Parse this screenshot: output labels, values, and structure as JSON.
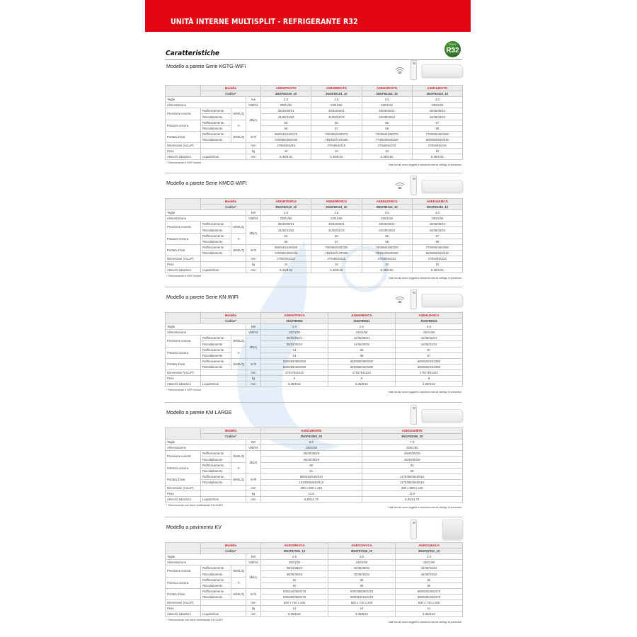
{
  "header": {
    "title": "UNITÀ INTERNE MULTISPLIT - REFRIGERANTE R32"
  },
  "intro": {
    "heading": "Caratteristiche",
    "badge_label": "R32",
    "badge_small": "refrigerant"
  },
  "labels": {
    "modello": "Modello",
    "codice": "Codice*",
    "taglie": "Taglie",
    "alimentazione": "Alimentazione",
    "pressione": "Pressione sonora",
    "potenza": "Potenza sonora",
    "portata": "Portata d'aria",
    "dimensioni": "Dimensioni (AxLxP)",
    "peso": "Peso",
    "attacchi": "Attacchi tubazioni",
    "raffrescamento": "Raffrescamento",
    "riscaldamento": "Riscaldamento",
    "hmlq": "H/M/L/Q",
    "h": "H",
    "liquido_gas": "Liquido/Gas",
    "unit_alim": "V/Ø/Hz",
    "unit_db": "dB(A)",
    "unit_portata": "m³/h",
    "unit_mm": "mm",
    "unit_kg": "kg",
    "wifi": "WIFI",
    "disclaimer": "I dati tecnici sono soggetti a variazioni senza obbligo di preavviso."
  },
  "accent_color": "#e30613",
  "sections": [
    {
      "title": "Modello a parete Serie KGTG-WIFI",
      "icons": [
        "wifi-icon",
        "remote-control-icon",
        "wall-unit-icon"
      ],
      "unit_kw": "Kw",
      "models": [
        "ASEH07KGTG",
        "ASEH09KGTG",
        "ASEH12KGTG",
        "ASEH14KGTG"
      ],
      "codes": [
        "3NGF82100_10",
        "3NGF82101_10",
        "3NGF82102_10",
        "3NGF82103_10"
      ],
      "taglie": [
        "2.0",
        "2.5",
        "3.5",
        "4.0"
      ],
      "alimentazione": [
        "230/1/50",
        "230/1/50",
        "230/1/50",
        "230/1/50"
      ],
      "pressione_raff": [
        "38/33/29/21",
        "40/34/29/21",
        "40/35/30/21",
        "43/36/30/21"
      ],
      "pressione_risc": [
        "41/35/31/22",
        "42/36/31/22",
        "42/38/33/22",
        "44/39/33/24"
      ],
      "potenza_raff": [
        "54",
        "55",
        "56",
        "57"
      ],
      "potenza_risc": [
        "56",
        "57",
        "58",
        "59"
      ],
      "portata_raff": [
        "650/540/430/270",
        "700/560/430/270",
        "700/560/430/270",
        "770/600/450/280"
      ],
      "portata_risc": [
        "720/580/460/330",
        "750/610/470/330",
        "770/640/520/330",
        "800/660/520/340"
      ],
      "dimensioni": [
        "270x834x215",
        "270x834x215",
        "270x834x215",
        "270x834x215"
      ],
      "peso": [
        "10",
        "10",
        "10",
        "10"
      ],
      "attacchi": [
        "6.35/9.52",
        "6.35/9.52",
        "6.35/9.52",
        "6.35/9.52"
      ],
      "footnote": "* Telecomando e WIFI inclusi"
    },
    {
      "title": "Modello a parete Serie KMCG-WIFI",
      "icons": [
        "wifi-icon",
        "remote-control-icon",
        "wall-unit-icon"
      ],
      "unit_kw": "kW",
      "models": [
        "ASEH07KMCG",
        "ASEH09KMCG",
        "ASEH12KMCG",
        "ASEH14KMCG"
      ],
      "codes": [
        "3NGF82112_10",
        "3NGF82113_10",
        "3NGF82114_10",
        "3NGF82115_10"
      ],
      "taglie": [
        "2.0",
        "2.5",
        "3.5",
        "4.0"
      ],
      "alimentazione": [
        "230/1/50",
        "230/1/50",
        "230/1/50",
        "230/1/50"
      ],
      "pressione_raff": [
        "38/33/29/21",
        "40/34/29/21",
        "40/35/30/21",
        "43/36/30/21"
      ],
      "pressione_risc": [
        "41/35/31/22",
        "42/36/31/22",
        "42/38/33/22",
        "44/39/33/24"
      ],
      "potenza_raff": [
        "54",
        "55",
        "55",
        "57"
      ],
      "potenza_risc": [
        "56",
        "57",
        "58",
        "59"
      ],
      "portata_raff": [
        "650/540/430/320",
        "700/560/430/320",
        "700/560/430/320",
        "770/600/450/350"
      ],
      "portata_risc": [
        "720/580/460/330",
        "750/610/470/330",
        "780/640/520/330",
        "820/660/520/340"
      ],
      "dimensioni": [
        "270x834x222",
        "270x834x222",
        "270x834x222",
        "270x834x222"
      ],
      "peso": [
        "10",
        "10",
        "10",
        "10"
      ],
      "attacchi": [
        "6.35/9.52",
        "6.35/9.52",
        "6.35/9.52",
        "6.35/9.52"
      ],
      "footnote": "* Telecomando e WIFI inclusi"
    },
    {
      "title": "Modello a parete Serie KN-WIFI",
      "icons": [
        "wifi-icon",
        "remote-control-icon",
        "wall-unit-icon"
      ],
      "unit_kw": "kW",
      "models": [
        "ASEH07KNCA",
        "ASEH09KNCA",
        "ASEH12KNCA"
      ],
      "codes": [
        "3NGF89906",
        "3NGF89911",
        "3NGF89916"
      ],
      "taglie": [
        "2.0",
        "2.5",
        "3.5"
      ],
      "alimentazione": [
        "230/1/50",
        "230/1/50",
        "230/1/50"
      ],
      "pressione_raff": [
        "36/33/28/21",
        "41/35/28/21",
        "42/36/32/21"
      ],
      "pressione_risc": [
        "36/33/30/22",
        "41/36/30/22",
        "42/35/31/22"
      ],
      "potenza_raff": [
        "51",
        "56",
        "57"
      ],
      "potenza_risc": [
        "51",
        "56",
        "57"
      ],
      "portata_raff": [
        "530/460/380/250",
        "640/560/380/250",
        "660/520/440/250"
      ],
      "portata_risc": [
        "530/480/420/280",
        "640/560/420/280",
        "660/520/440/280"
      ],
      "dimensioni": [
        "270x784x222",
        "270x784x222",
        "270x784x222"
      ],
      "peso": [
        "9",
        "9",
        "9"
      ],
      "attacchi": [
        "6.35/9.52",
        "6.35/9.52",
        "6.35/9.52"
      ],
      "footnote": "* Telecomando e WIFI inclusi"
    },
    {
      "title": "Modello a parete KM LARGE",
      "icons": [
        "remote-control-icon",
        "wall-unit-icon"
      ],
      "unit_kw": "kW",
      "models": [
        "ASEG18KMTE",
        "ASEG24KMTE"
      ],
      "codes": [
        "3NGF82083_20",
        "3NGF82086_20"
      ],
      "taglie": [
        "5.0",
        "7.0"
      ],
      "alimentazione": [
        "230/1/50",
        "230/1/50"
      ],
      "pressione_raff": [
        "45/40/35/29",
        "49/40/35/29"
      ],
      "pressione_risc": [
        "46/40/35/29",
        "49/40/35/29"
      ],
      "potenza_raff": [
        "60",
        "65"
      ],
      "potenza_risc": [
        "61",
        "65"
      ],
      "portata_raff": [
        "960/810/640/510",
        "1170/850/640/510"
      ],
      "portata_risc": [
        "1020/850/640/510",
        "1170/850/640/510"
      ],
      "dimensioni": [
        "280 x 980 x 240",
        "280 x 980 x 240"
      ],
      "peso": [
        "12.5",
        "12.5"
      ],
      "attacchi": [
        "6.35/12.70",
        "6.35/12.70"
      ],
      "footnote": "* Telecomando con timer settimanale INCLUSO"
    },
    {
      "title": "Modello a pavimento KV",
      "icons": [
        "remote-control-icon",
        "floor-unit-icon"
      ],
      "unit_kw": "kW",
      "models": [
        "AGEG09KVCA",
        "AGEG12KVCA",
        "AGEG14KVCA"
      ],
      "codes": [
        "3NGF87041_10",
        "3NGF87046_10",
        "3NGF87051_10"
      ],
      "taglie": [
        "2.5",
        "3.5",
        "4.0"
      ],
      "alimentazione": [
        "230/1/50",
        "230/1/50",
        "230/1/50"
      ],
      "pressione_raff": [
        "39/34/28/22",
        "42/36/30/22",
        "44/38/31/22"
      ],
      "pressione_risc": [
        "39/35/30/22",
        "42/38/32/22",
        "44/39/33/22"
      ],
      "potenza_raff": [
        "52",
        "55",
        "56"
      ],
      "potenza_risc": [
        "52",
        "55",
        "56"
      ],
      "portata_raff": [
        "530/440/360/270",
        "600/490/380/270",
        "650/520/400/270"
      ],
      "portata_risc": [
        "530/460/360/270",
        "600/510/410/270",
        "650/540/430/270"
      ],
      "dimensioni": [
        "600 x 740 x 200",
        "600 x 740 x 200",
        "600 x 740 x 200"
      ],
      "peso": [
        "14",
        "14",
        "14"
      ],
      "attacchi": [
        "6.35/9.52",
        "6.35/9.52",
        "6.35/9.52"
      ],
      "footnote": "* Telecomando con timer settimanale INCLUSO"
    }
  ]
}
